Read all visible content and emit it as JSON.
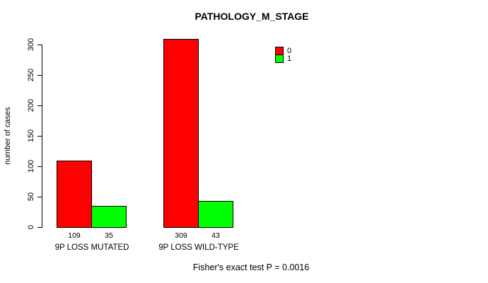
{
  "chart_data": {
    "type": "bar",
    "title": "PATHOLOGY_M_STAGE",
    "ylabel": "number of cases",
    "xlabel": "",
    "ylim": [
      0,
      300
    ],
    "yticks": [
      0,
      50,
      100,
      150,
      200,
      250,
      300
    ],
    "grid": false,
    "legend_position": "top-right inside plot",
    "categories": [
      "9P LOSS MUTATED",
      "9P LOSS WILD-TYPE"
    ],
    "series": [
      {
        "name": "0",
        "color": "#ff0000",
        "values": [
          109,
          309
        ]
      },
      {
        "name": "1",
        "color": "#00ff00",
        "values": [
          35,
          43
        ]
      }
    ],
    "value_labels": [
      [
        "109",
        "35"
      ],
      [
        "309",
        "43"
      ]
    ],
    "annotation": "Fisher's exact test P = 0.0016",
    "axis_color": "#000000",
    "background": "#ffffff"
  }
}
